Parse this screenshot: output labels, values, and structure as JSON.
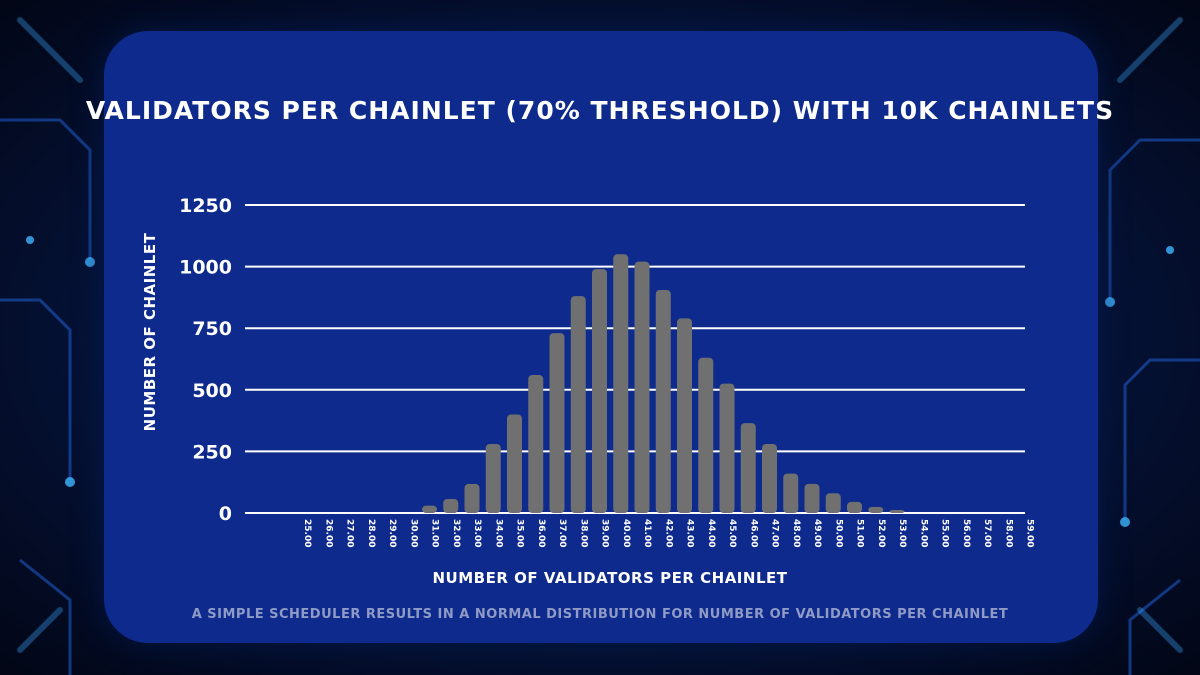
{
  "chart_data": {
    "type": "bar",
    "title": "VALIDATORS PER CHAINLET (70% THRESHOLD) WITH 10K CHAINLETS",
    "xlabel": "NUMBER OF VALIDATORS PER CHAINLET",
    "ylabel": "NUMBER OF CHAINLET",
    "caption": "A SIMPLE SCHEDULER RESULTS IN A NORMAL DISTRIBUTION FOR NUMBER OF VALIDATORS PER CHAINLET",
    "ylim": [
      0,
      1250
    ],
    "yticks": [
      "0",
      "250",
      "500",
      "750",
      "1000",
      "1250"
    ],
    "grid": true,
    "bar_color": "#707070",
    "categories": [
      "25.00",
      "26.00",
      "27.00",
      "28.00",
      "29.00",
      "30.00",
      "31.00",
      "32.00",
      "33.00",
      "34.00",
      "35.00",
      "36.00",
      "37.00",
      "38.00",
      "39.00",
      "40.00",
      "41.00",
      "42.00",
      "43.00",
      "44.00",
      "45.00",
      "46.00",
      "47.00",
      "48.00",
      "49.00",
      "50.00",
      "51.00",
      "52.00",
      "53.00",
      "54.00",
      "55.00",
      "56.00",
      "57.00",
      "58.00",
      "59.00"
    ],
    "values": [
      0,
      0,
      0,
      0,
      0,
      0,
      30,
      57,
      118,
      280,
      400,
      560,
      730,
      880,
      990,
      1050,
      1020,
      905,
      790,
      630,
      525,
      365,
      280,
      160,
      118,
      80,
      45,
      25,
      12,
      0,
      0,
      0,
      0,
      0,
      0
    ]
  }
}
